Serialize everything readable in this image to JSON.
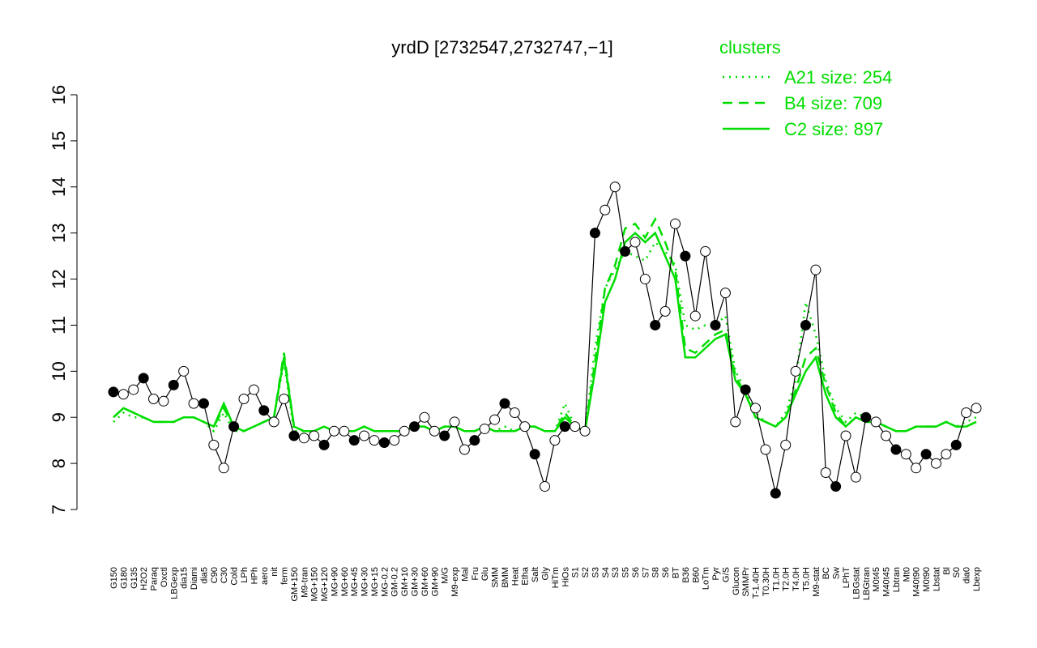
{
  "chart_data": {
    "type": "line",
    "title": "yrdD [2732547,2732747,−1]",
    "legend_title": "clusters",
    "categories": [
      "G150",
      "G180",
      "G135",
      "H2O2",
      "Paraq",
      "Oxctl",
      "LBGexp",
      "dia15",
      "Diami",
      "dia5",
      "C90",
      "C30",
      "Cold",
      "LPh",
      "HPh",
      "aero",
      "nit",
      "ferm",
      "GM+150",
      "M9-tran",
      "MG+150",
      "MG+120",
      "MG+90",
      "MG+60",
      "MG+45",
      "MG+30",
      "MG+15",
      "MG-0.2",
      "GM-0.2",
      "GM+10",
      "GM+30",
      "GM+60",
      "GM+90",
      "M/G",
      "M9-exp",
      "Mal",
      "Fru",
      "Glu",
      "SMM",
      "BMM",
      "Heat",
      "Etha",
      "Salt",
      "Gly",
      "HiTm",
      "HiOs",
      "S1",
      "S2",
      "S3",
      "S4",
      "S3",
      "S5",
      "S6",
      "S7",
      "S8",
      "S6",
      "BT",
      "B36",
      "B60",
      "LoTm",
      "Pyr",
      "G/S",
      "Glucon",
      "SMMPr",
      "T-1.40H",
      "T0.30H",
      "T1.0H",
      "T2.0H",
      "T4.0H",
      "T5.0H",
      "M9-stat",
      "BC",
      "Sw",
      "LPhT",
      "LBGstat",
      "LBGtran",
      "M0t45",
      "M40t45",
      "Lbtran",
      "Mt0",
      "M40t90",
      "M0t90",
      "Lbstat",
      "Bl",
      "S0",
      "dia0",
      "Lbexp"
    ],
    "series": [
      {
        "name": "yrdD",
        "color": "#000000",
        "values": [
          9.55,
          9.5,
          9.6,
          9.85,
          9.4,
          9.35,
          9.7,
          10.0,
          9.3,
          9.3,
          8.4,
          7.9,
          8.8,
          9.4,
          9.6,
          9.15,
          8.9,
          9.4,
          8.6,
          8.55,
          8.6,
          8.4,
          8.7,
          8.7,
          8.5,
          8.6,
          8.5,
          8.45,
          8.5,
          8.7,
          8.8,
          9.0,
          8.7,
          8.6,
          8.9,
          8.3,
          8.5,
          8.75,
          8.95,
          9.3,
          9.1,
          8.8,
          8.2,
          7.5,
          8.5,
          8.8,
          8.8,
          8.7,
          13.0,
          13.5,
          14.0,
          12.6,
          12.8,
          12.0,
          11.0,
          11.3,
          13.2,
          12.5,
          11.2,
          12.6,
          11.0,
          11.7,
          8.9,
          9.6,
          9.2,
          8.3,
          7.35,
          8.4,
          10.0,
          11.0,
          12.2,
          7.8,
          7.5,
          8.6,
          7.7,
          9.0,
          8.9,
          8.6,
          8.3,
          8.2,
          7.9,
          8.2,
          8.0,
          8.2,
          8.4,
          9.1,
          9.2
        ]
      },
      {
        "name": "A21 size: 254",
        "color": "#00dd00",
        "dash": "dotted",
        "values": [
          8.9,
          9.1,
          9.0,
          9.0,
          8.9,
          8.9,
          8.9,
          9.0,
          9.0,
          8.9,
          8.7,
          9.1,
          8.7,
          8.7,
          8.8,
          8.9,
          9.0,
          10.2,
          8.7,
          8.7,
          8.7,
          8.8,
          8.7,
          8.7,
          8.7,
          8.8,
          8.7,
          8.7,
          8.7,
          8.7,
          8.8,
          8.8,
          8.7,
          8.8,
          8.8,
          8.7,
          8.7,
          8.8,
          8.7,
          8.8,
          8.7,
          8.8,
          8.8,
          8.7,
          8.7,
          9.3,
          8.8,
          8.7,
          10.5,
          11.8,
          12.2,
          12.6,
          12.5,
          12.4,
          12.8,
          12.6,
          12.3,
          11.0,
          10.9,
          11.0,
          11.0,
          11.2,
          10.0,
          9.6,
          9.1,
          8.9,
          8.8,
          9.1,
          9.8,
          11.5,
          10.8,
          9.8,
          9.2,
          8.9,
          9.1,
          9.0,
          8.9,
          8.8,
          8.7,
          8.7,
          8.8,
          8.8,
          8.8,
          8.9,
          8.8,
          8.9,
          9.0
        ]
      },
      {
        "name": "B4 size: 709",
        "color": "#00dd00",
        "dash": "dashed",
        "values": [
          9.0,
          9.2,
          9.1,
          9.0,
          8.9,
          8.9,
          8.9,
          9.0,
          9.0,
          8.9,
          8.8,
          9.2,
          8.8,
          8.7,
          8.8,
          8.9,
          9.0,
          10.4,
          8.8,
          8.7,
          8.7,
          8.8,
          8.7,
          8.7,
          8.7,
          8.8,
          8.7,
          8.7,
          8.7,
          8.7,
          8.8,
          8.8,
          8.7,
          8.8,
          8.8,
          8.7,
          8.7,
          8.8,
          8.7,
          8.7,
          8.7,
          8.8,
          8.8,
          8.7,
          8.7,
          9.1,
          8.8,
          8.7,
          10.2,
          11.8,
          12.3,
          13.1,
          13.2,
          12.9,
          13.3,
          12.8,
          12.2,
          10.5,
          10.4,
          10.6,
          10.8,
          10.9,
          9.9,
          9.5,
          9.0,
          8.9,
          8.8,
          9.0,
          9.6,
          10.3,
          10.5,
          9.7,
          9.1,
          8.8,
          9.0,
          8.9,
          8.9,
          8.8,
          8.7,
          8.7,
          8.8,
          8.8,
          8.8,
          8.9,
          8.8,
          8.8,
          8.9
        ]
      },
      {
        "name": "C2 size: 897",
        "color": "#00dd00",
        "dash": "solid",
        "values": [
          9.0,
          9.2,
          9.1,
          9.0,
          8.9,
          8.9,
          8.9,
          9.0,
          9.0,
          8.9,
          8.8,
          9.3,
          8.8,
          8.7,
          8.8,
          8.9,
          9.0,
          10.3,
          8.8,
          8.7,
          8.7,
          8.8,
          8.7,
          8.7,
          8.7,
          8.8,
          8.7,
          8.7,
          8.7,
          8.7,
          8.8,
          8.8,
          8.7,
          8.8,
          8.8,
          8.7,
          8.7,
          8.8,
          8.7,
          8.7,
          8.7,
          8.8,
          8.8,
          8.7,
          8.7,
          9.0,
          8.8,
          8.7,
          10.0,
          11.5,
          12.0,
          12.8,
          13.0,
          12.8,
          13.0,
          12.5,
          12.0,
          10.3,
          10.3,
          10.5,
          10.7,
          10.8,
          9.8,
          9.5,
          9.0,
          8.9,
          8.8,
          9.0,
          9.5,
          10.0,
          10.3,
          9.5,
          9.0,
          8.8,
          9.0,
          8.9,
          8.9,
          8.8,
          8.7,
          8.7,
          8.8,
          8.8,
          8.8,
          8.9,
          8.8,
          8.8,
          8.9
        ]
      }
    ],
    "ylim": [
      7,
      16
    ],
    "yticks": [
      7,
      8,
      9,
      10,
      11,
      12,
      13,
      14,
      15,
      16
    ]
  }
}
